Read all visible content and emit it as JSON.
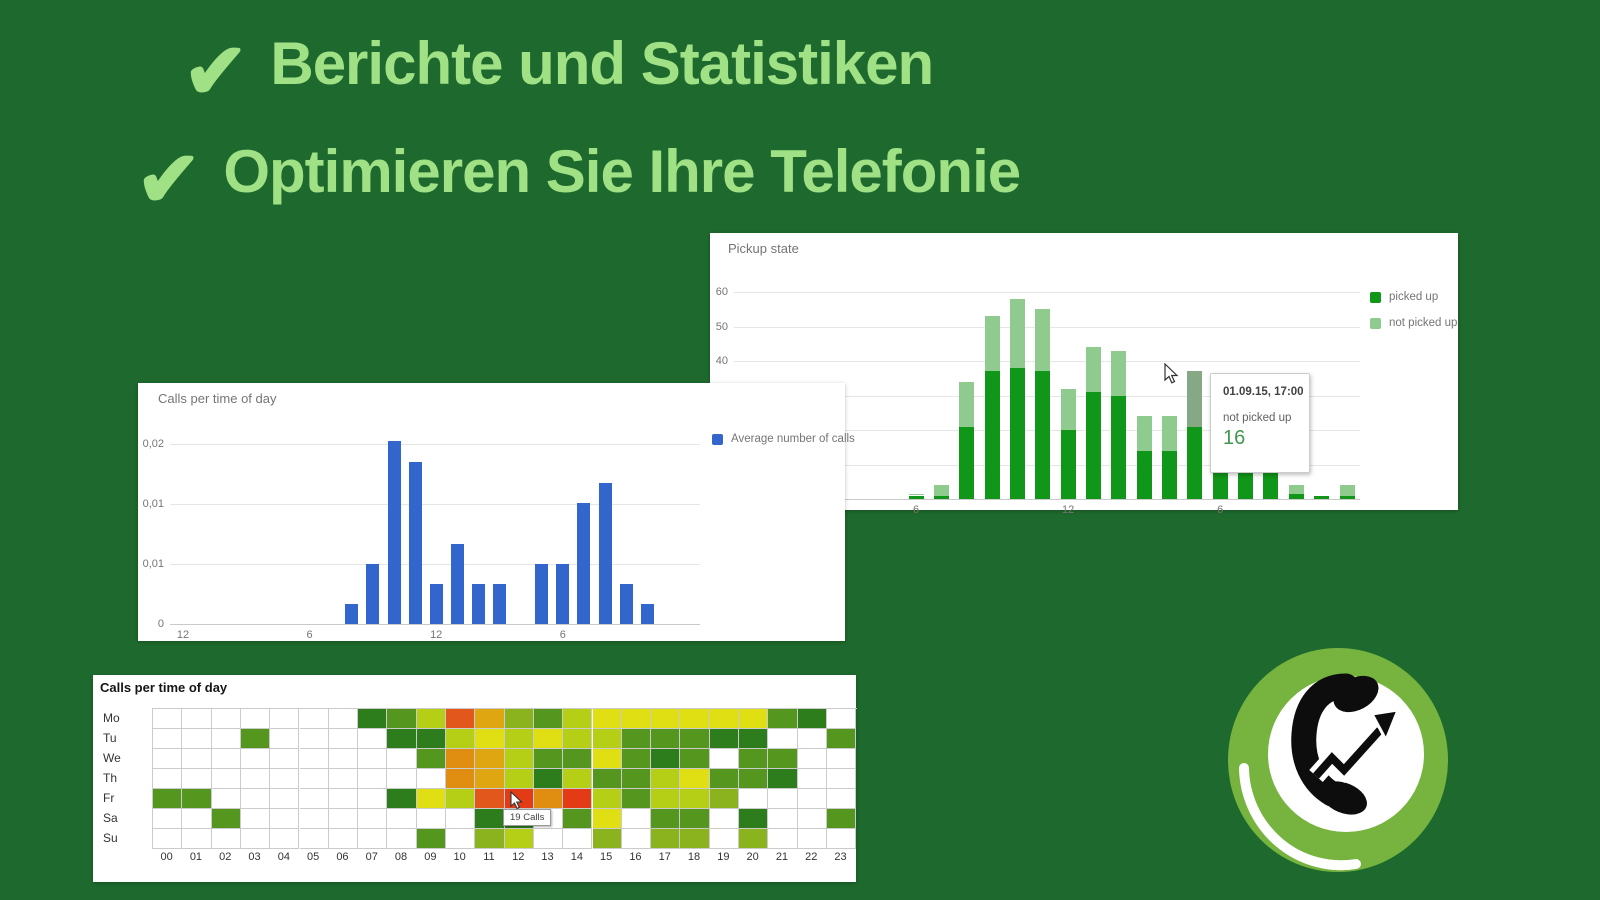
{
  "background_color": "#1e6a2e",
  "headlines": {
    "color": "#9fe184",
    "items": [
      {
        "check": "✔",
        "text": "Berichte und Statistiken"
      },
      {
        "check": "✔",
        "text": "Optimieren Sie Ihre Telefonie"
      }
    ]
  },
  "chart_data": [
    {
      "id": "pickup-state",
      "type": "stacked-bar",
      "title": "Pickup state",
      "legend_position": "right",
      "series": [
        {
          "name": "picked up",
          "color": "#109618"
        },
        {
          "name": "not picked up",
          "color": "#8fcb8f"
        }
      ],
      "hover_segment_color": "#84a984",
      "hours": [
        6,
        7,
        8,
        9,
        10,
        11,
        12,
        13,
        14,
        15,
        16,
        17,
        18,
        19,
        20,
        21,
        22,
        23
      ],
      "picked_up": [
        1,
        1,
        21,
        37,
        38,
        37,
        20,
        31,
        30,
        14,
        14,
        21,
        18,
        15,
        11,
        1.5,
        1,
        1
      ],
      "not_picked_up": [
        0.5,
        3,
        13,
        16,
        20,
        18,
        12,
        13,
        13,
        10,
        10,
        16,
        7,
        5,
        4,
        2.7,
        0,
        3.2
      ],
      "hovered_hour": 17,
      "ylim": [
        0,
        65
      ],
      "grid_values": [
        10,
        20,
        30,
        40,
        50,
        60
      ],
      "y_ticks": [
        {
          "v": 60,
          "label": "60"
        },
        {
          "v": 50,
          "label": "50"
        },
        {
          "v": 40,
          "label": "40"
        }
      ],
      "x_ticks": [
        {
          "h": 6,
          "label": "6"
        },
        {
          "h": 12,
          "label": "12"
        },
        {
          "h": 18,
          "label": "6"
        }
      ],
      "tooltip": {
        "title": "01.09.15, 17:00",
        "series": "not picked up",
        "value": "16"
      }
    },
    {
      "id": "calls-per-time-of-day-bar",
      "type": "bar",
      "title": "Calls per time of day",
      "legend": "Average number of calls",
      "bar_color": "#3366cc",
      "x_slots": 24,
      "values_x1000": [
        0,
        0,
        0,
        0,
        0,
        0,
        0,
        0,
        2.2,
        6.7,
        20.3,
        18,
        4.5,
        8.9,
        4.5,
        4.5,
        0,
        6.7,
        6.7,
        13.4,
        15.7,
        4.5,
        2.2,
        0
      ],
      "ylim_x1000": [
        0,
        22
      ],
      "y_ticks": [
        {
          "v": 20,
          "label": "0,02"
        },
        {
          "v": 13.33,
          "label": "0,01"
        },
        {
          "v": 6.67,
          "label": "0,01"
        },
        {
          "v": 0,
          "label": "0"
        }
      ],
      "x_ticks": [
        {
          "slot": 0,
          "label": "12"
        },
        {
          "slot": 6,
          "label": "6"
        },
        {
          "slot": 12,
          "label": "12"
        },
        {
          "slot": 18,
          "label": "6"
        }
      ]
    },
    {
      "id": "calls-per-time-of-day-heatmap",
      "type": "heatmap",
      "title": "Calls per time of day",
      "row_labels": [
        "Mo",
        "Tu",
        "We",
        "Th",
        "Fr",
        "Sa",
        "Su"
      ],
      "col_labels": [
        "00",
        "01",
        "02",
        "03",
        "04",
        "05",
        "06",
        "07",
        "08",
        "09",
        "10",
        "11",
        "12",
        "13",
        "14",
        "15",
        "16",
        "17",
        "18",
        "19",
        "20",
        "21",
        "22",
        "23"
      ],
      "palette": {
        "W": "#ffffff",
        "G1": "#2e7d1c",
        "G2": "#55961e",
        "G3": "#8ab31d",
        "G4": "#b5cf16",
        "Y": "#dfdf13",
        "OY": "#dfa612",
        "O": "#df8e11",
        "OR": "#e1571c",
        "R": "#e23b16"
      },
      "cells": [
        [
          "W",
          "W",
          "W",
          "W",
          "W",
          "W",
          "W",
          "G1",
          "G2",
          "G4",
          "OR",
          "OY",
          "G3",
          "G2",
          "G4",
          "Y",
          "Y",
          "Y",
          "Y",
          "Y",
          "Y",
          "G2",
          "G1",
          "W"
        ],
        [
          "W",
          "W",
          "W",
          "G2",
          "W",
          "W",
          "W",
          "W",
          "G1",
          "G1",
          "G4",
          "Y",
          "G4",
          "Y",
          "G4",
          "G4",
          "G2",
          "G2",
          "G2",
          "G1",
          "G1",
          "W",
          "W",
          "G2"
        ],
        [
          "W",
          "W",
          "W",
          "W",
          "W",
          "W",
          "W",
          "W",
          "W",
          "G2",
          "O",
          "OY",
          "G4",
          "G2",
          "G2",
          "Y",
          "G2",
          "G1",
          "G2",
          "W",
          "G2",
          "G2",
          "W",
          "W"
        ],
        [
          "W",
          "W",
          "W",
          "W",
          "W",
          "W",
          "W",
          "W",
          "W",
          "W",
          "O",
          "OY",
          "G4",
          "G1",
          "G4",
          "G2",
          "G2",
          "G4",
          "Y",
          "G2",
          "G2",
          "G1",
          "W",
          "W"
        ],
        [
          "G2",
          "G2",
          "W",
          "W",
          "W",
          "W",
          "W",
          "W",
          "G1",
          "Y",
          "G4",
          "OR",
          "R",
          "O",
          "R",
          "G4",
          "G2",
          "G4",
          "G4",
          "G3",
          "W",
          "W",
          "W",
          "W"
        ],
        [
          "W",
          "W",
          "G2",
          "W",
          "W",
          "W",
          "W",
          "W",
          "W",
          "W",
          "W",
          "G1",
          "G1",
          "W",
          "G2",
          "Y",
          "W",
          "G2",
          "G2",
          "W",
          "G1",
          "W",
          "W",
          "G2"
        ],
        [
          "W",
          "W",
          "W",
          "W",
          "W",
          "W",
          "W",
          "W",
          "W",
          "G2",
          "W",
          "G3",
          "G4",
          "W",
          "W",
          "G3",
          "W",
          "G3",
          "G3",
          "W",
          "G3",
          "W",
          "W",
          "W"
        ]
      ],
      "hovered_cell": {
        "row": "Fr",
        "col": "12"
      },
      "tooltip": "19 Calls"
    }
  ],
  "logo": {
    "name": "phone-with-growth-arrow",
    "ring_color": "#76b43f",
    "inner_color": "#ffffff",
    "glyph_color": "#0d0d0d"
  }
}
